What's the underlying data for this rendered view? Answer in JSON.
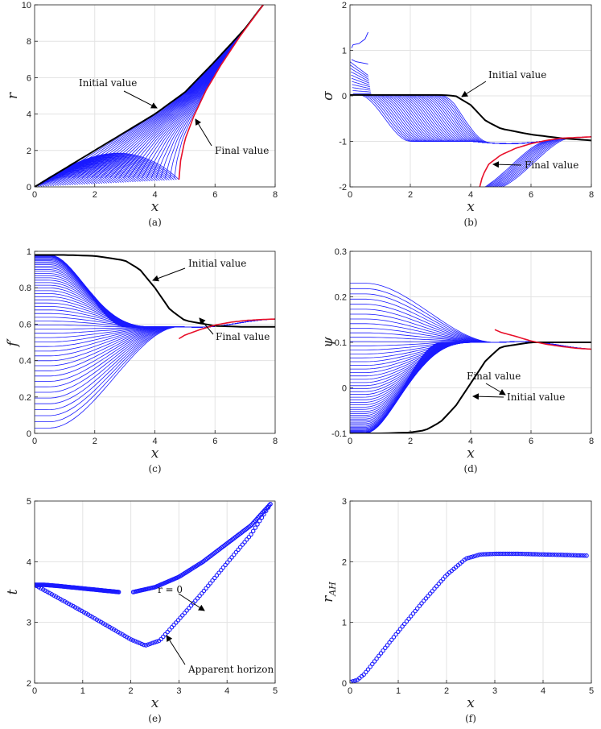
{
  "chart_data": [
    {
      "panel": "a",
      "type": "line",
      "caption": "(a)",
      "xlabel": "x",
      "ylabel": "r",
      "xlim": [
        0,
        8
      ],
      "ylim": [
        0,
        10
      ],
      "xticks": [
        0,
        2,
        4,
        6,
        8
      ],
      "yticks": [
        0,
        2,
        4,
        6,
        8,
        10
      ],
      "grid": true,
      "series": [
        {
          "x": [
            0,
            2,
            4,
            5,
            6,
            7,
            7.6
          ],
          "y": [
            0,
            2.0,
            4.0,
            5.2,
            6.9,
            8.7,
            10
          ]
        },
        {
          "x": [
            4.8,
            4.85,
            5.0,
            5.3,
            5.7,
            6.2,
            6.8,
            7.6
          ],
          "y": [
            0.4,
            1.4,
            2.6,
            3.9,
            5.3,
            6.7,
            8.2,
            10
          ]
        }
      ],
      "annotations": [
        {
          "text": "Initial value"
        },
        {
          "text": "Final value"
        }
      ]
    },
    {
      "panel": "b",
      "type": "line",
      "caption": "(b)",
      "xlabel": "x",
      "ylabel": "σ",
      "xlim": [
        0,
        8
      ],
      "ylim": [
        -2,
        2
      ],
      "xticks": [
        0,
        2,
        4,
        6,
        8
      ],
      "yticks": [
        -2,
        -1,
        0,
        1,
        2
      ],
      "grid": true,
      "series": [
        {
          "x": [
            0,
            1,
            2,
            3,
            3.5,
            4,
            4.5,
            5,
            6,
            7,
            8
          ],
          "y": [
            0.02,
            0.02,
            0.02,
            0.02,
            0.0,
            -0.2,
            -0.55,
            -0.72,
            -0.85,
            -0.93,
            -0.98
          ]
        },
        {
          "x": [
            4.3,
            4.4,
            4.6,
            5.0,
            5.5,
            6.0,
            6.5,
            7.0,
            8.0
          ],
          "y": [
            -2,
            -1.75,
            -1.5,
            -1.3,
            -1.15,
            -1.05,
            -0.98,
            -0.93,
            -0.9
          ]
        }
      ],
      "annotations": [
        {
          "text": "Initial value"
        },
        {
          "text": "Final value"
        }
      ]
    },
    {
      "panel": "c",
      "type": "line",
      "caption": "(c)",
      "xlabel": "x",
      "ylabel": "f′",
      "xlim": [
        0,
        8
      ],
      "ylim": [
        0,
        1
      ],
      "xticks": [
        0,
        2,
        4,
        6,
        8
      ],
      "yticks": [
        0,
        0.2,
        0.4,
        0.6,
        0.8,
        1
      ],
      "grid": true,
      "series": [
        {
          "x": [
            0,
            1,
            2,
            3,
            3.5,
            4,
            4.5,
            5,
            6,
            7,
            8
          ],
          "y": [
            0.98,
            0.98,
            0.975,
            0.95,
            0.9,
            0.8,
            0.68,
            0.62,
            0.59,
            0.585,
            0.585
          ]
        },
        {
          "x": [
            4.8,
            5.0,
            5.5,
            6.0,
            6.5,
            7.0,
            7.5,
            8.0
          ],
          "y": [
            0.52,
            0.54,
            0.57,
            0.595,
            0.61,
            0.62,
            0.625,
            0.628
          ]
        }
      ],
      "annotations": [
        {
          "text": "Initial value"
        },
        {
          "text": "Final value"
        }
      ]
    },
    {
      "panel": "d",
      "type": "line",
      "caption": "(d)",
      "xlabel": "x",
      "ylabel": "ψ",
      "xlim": [
        0,
        8
      ],
      "ylim": [
        -0.1,
        0.3
      ],
      "xticks": [
        0,
        2,
        4,
        6,
        8
      ],
      "yticks": [
        -0.1,
        0,
        0.1,
        0.2,
        0.3
      ],
      "grid": true,
      "series": [
        {
          "x": [
            0,
            1,
            2,
            2.5,
            3,
            3.5,
            4,
            4.5,
            5,
            6,
            7,
            8
          ],
          "y": [
            -0.1,
            -0.1,
            -0.098,
            -0.093,
            -0.075,
            -0.04,
            0.01,
            0.06,
            0.09,
            0.1,
            0.1,
            0.1
          ]
        },
        {
          "x": [
            4.8,
            5.0,
            5.5,
            6.0,
            6.5,
            7.0,
            7.5,
            8.0
          ],
          "y": [
            0.128,
            0.122,
            0.113,
            0.103,
            0.096,
            0.091,
            0.087,
            0.085
          ]
        }
      ],
      "annotations": [
        {
          "text": "Final value"
        },
        {
          "text": "Initial value"
        }
      ]
    },
    {
      "panel": "e",
      "type": "scatter",
      "caption": "(e)",
      "xlabel": "x",
      "ylabel": "t",
      "xlim": [
        0,
        5
      ],
      "ylim": [
        2,
        5
      ],
      "xticks": [
        0,
        1,
        2,
        3,
        4,
        5
      ],
      "yticks": [
        2,
        3,
        4,
        5
      ],
      "grid": true,
      "series": [
        {
          "x": [
            0.0,
            0.5,
            1.0,
            1.5,
            2.0,
            2.3,
            2.6,
            3.0,
            3.5,
            4.0,
            4.5,
            4.9
          ],
          "y": [
            3.62,
            3.4,
            3.18,
            2.95,
            2.72,
            2.62,
            2.7,
            3.05,
            3.5,
            3.98,
            4.45,
            4.95
          ]
        },
        {
          "x": [
            0.0,
            0.2,
            0.5,
            1.0,
            1.5,
            1.75
          ],
          "y": [
            3.62,
            3.62,
            3.6,
            3.56,
            3.52,
            3.5
          ]
        },
        {
          "x": [
            2.05,
            2.5,
            3.0,
            3.5,
            4.0,
            4.5,
            4.9
          ],
          "y": [
            3.5,
            3.58,
            3.75,
            4.0,
            4.3,
            4.6,
            4.95
          ]
        }
      ],
      "annotations": [
        {
          "text": "r = 0"
        },
        {
          "text": "Apparent horizon"
        }
      ]
    },
    {
      "panel": "f",
      "type": "scatter",
      "caption": "(f)",
      "xlabel": "x",
      "ylabel": "r_AH",
      "xlim": [
        0,
        5
      ],
      "ylim": [
        0,
        3
      ],
      "xticks": [
        0,
        1,
        2,
        3,
        4,
        5
      ],
      "yticks": [
        0,
        1,
        2,
        3
      ],
      "grid": true,
      "series": [
        {
          "x": [
            0.02,
            0.15,
            0.3,
            0.6,
            1.0,
            1.5,
            2.0,
            2.4,
            2.7,
            3.0,
            3.5,
            4.0,
            4.5,
            4.9
          ],
          "y": [
            0.02,
            0.05,
            0.15,
            0.45,
            0.85,
            1.33,
            1.78,
            2.05,
            2.12,
            2.13,
            2.13,
            2.12,
            2.11,
            2.1
          ]
        }
      ]
    }
  ]
}
